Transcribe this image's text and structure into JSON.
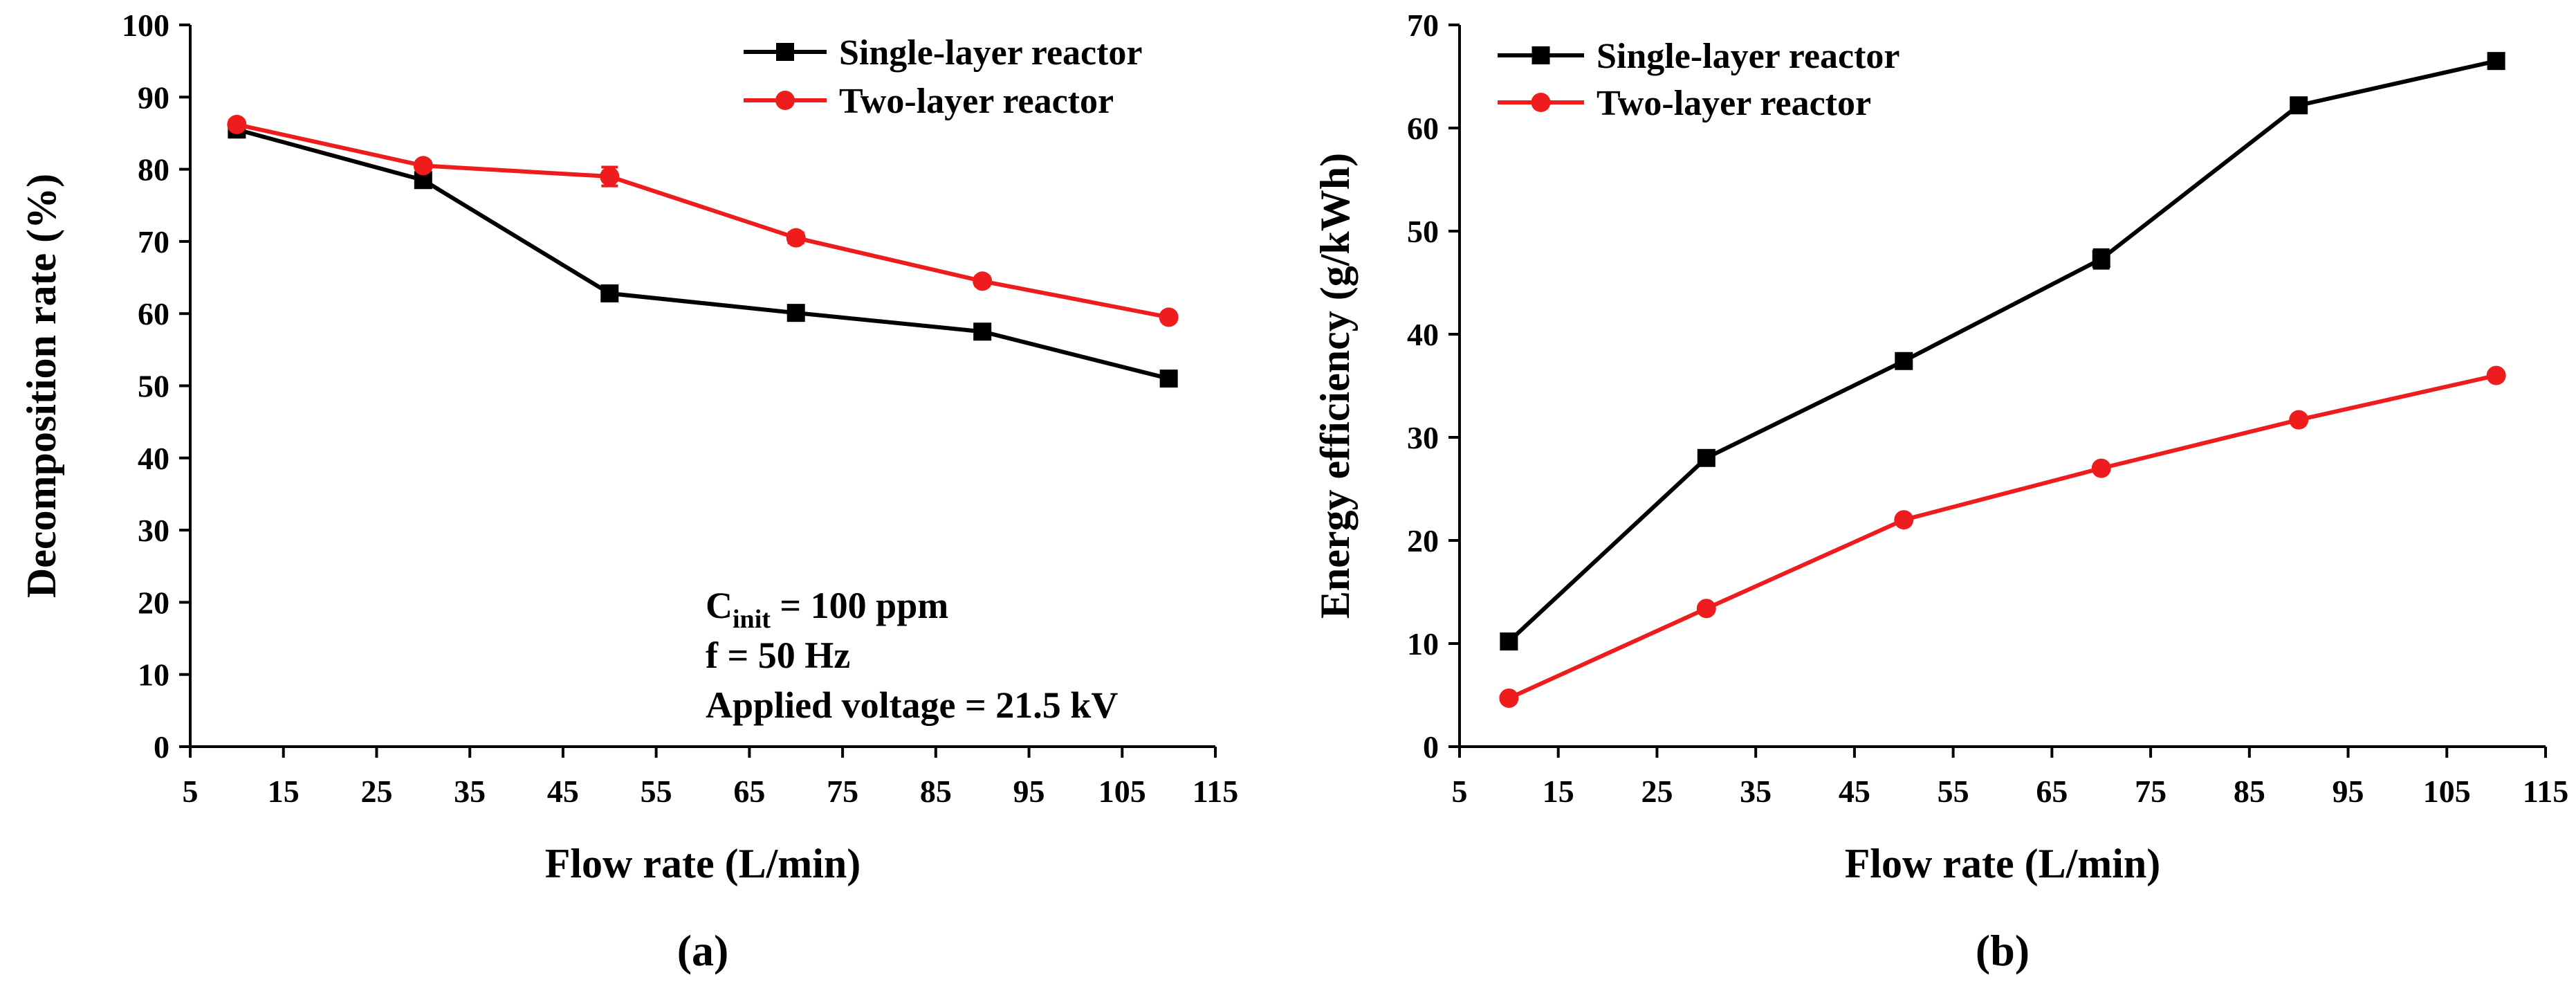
{
  "chart_data": [
    {
      "type": "line",
      "panel_label": "(a)",
      "xlabel": "Flow rate (L/min)",
      "ylabel": "Decomposition rate (%)",
      "xlim": [
        5,
        115
      ],
      "ylim": [
        0,
        100
      ],
      "xticks": [
        5,
        15,
        25,
        35,
        45,
        55,
        65,
        75,
        85,
        95,
        105,
        115
      ],
      "yticks": [
        0,
        10,
        20,
        30,
        40,
        50,
        60,
        70,
        80,
        90,
        100
      ],
      "grid": false,
      "legend_position": "top-right",
      "x": [
        10,
        30,
        50,
        70,
        90,
        110
      ],
      "series": [
        {
          "name": "Single-layer reactor",
          "color": "#000000",
          "marker": "square",
          "values": [
            85.5,
            78.5,
            62.8,
            60.1,
            57.5,
            51.0
          ],
          "errors": [
            0.8,
            0.8,
            0.9,
            0.9,
            0.8,
            0.7
          ]
        },
        {
          "name": "Two-layer reactor",
          "color": "#ee1c1c",
          "marker": "circle",
          "values": [
            86.2,
            80.5,
            79.0,
            70.5,
            64.5,
            59.5
          ],
          "errors": [
            0.6,
            0.6,
            1.3,
            0.7,
            0.6,
            0.6
          ]
        }
      ],
      "annotation": {
        "c_symbol": "C",
        "c_subscript": "init",
        "c_rest": " = 100 ppm",
        "freq": "f = 50 Hz",
        "voltage": "Applied  voltage = 21.5 kV"
      }
    },
    {
      "type": "line",
      "panel_label": "(b)",
      "xlabel": "Flow rate (L/min)",
      "ylabel": "Energy efficiency (g/kWh)",
      "xlim": [
        5,
        115
      ],
      "ylim": [
        0,
        70
      ],
      "xticks": [
        5,
        15,
        25,
        35,
        45,
        55,
        65,
        75,
        85,
        95,
        105,
        115
      ],
      "yticks": [
        0,
        10,
        20,
        30,
        40,
        50,
        60,
        70
      ],
      "grid": false,
      "legend_position": "top-left",
      "x": [
        10,
        30,
        50,
        70,
        90,
        110
      ],
      "series": [
        {
          "name": "Single-layer reactor",
          "color": "#000000",
          "marker": "square",
          "values": [
            10.2,
            28.0,
            37.4,
            47.3,
            62.2,
            66.5
          ],
          "errors": [
            0.5,
            0.5,
            0.5,
            0.9,
            0.6,
            0.5
          ]
        },
        {
          "name": "Two-layer reactor",
          "color": "#ee1c1c",
          "marker": "circle",
          "values": [
            4.7,
            13.4,
            22.0,
            27.0,
            31.7,
            36.0
          ],
          "errors": [
            0.3,
            0.3,
            0.3,
            0.3,
            0.3,
            0.3
          ]
        }
      ]
    }
  ]
}
